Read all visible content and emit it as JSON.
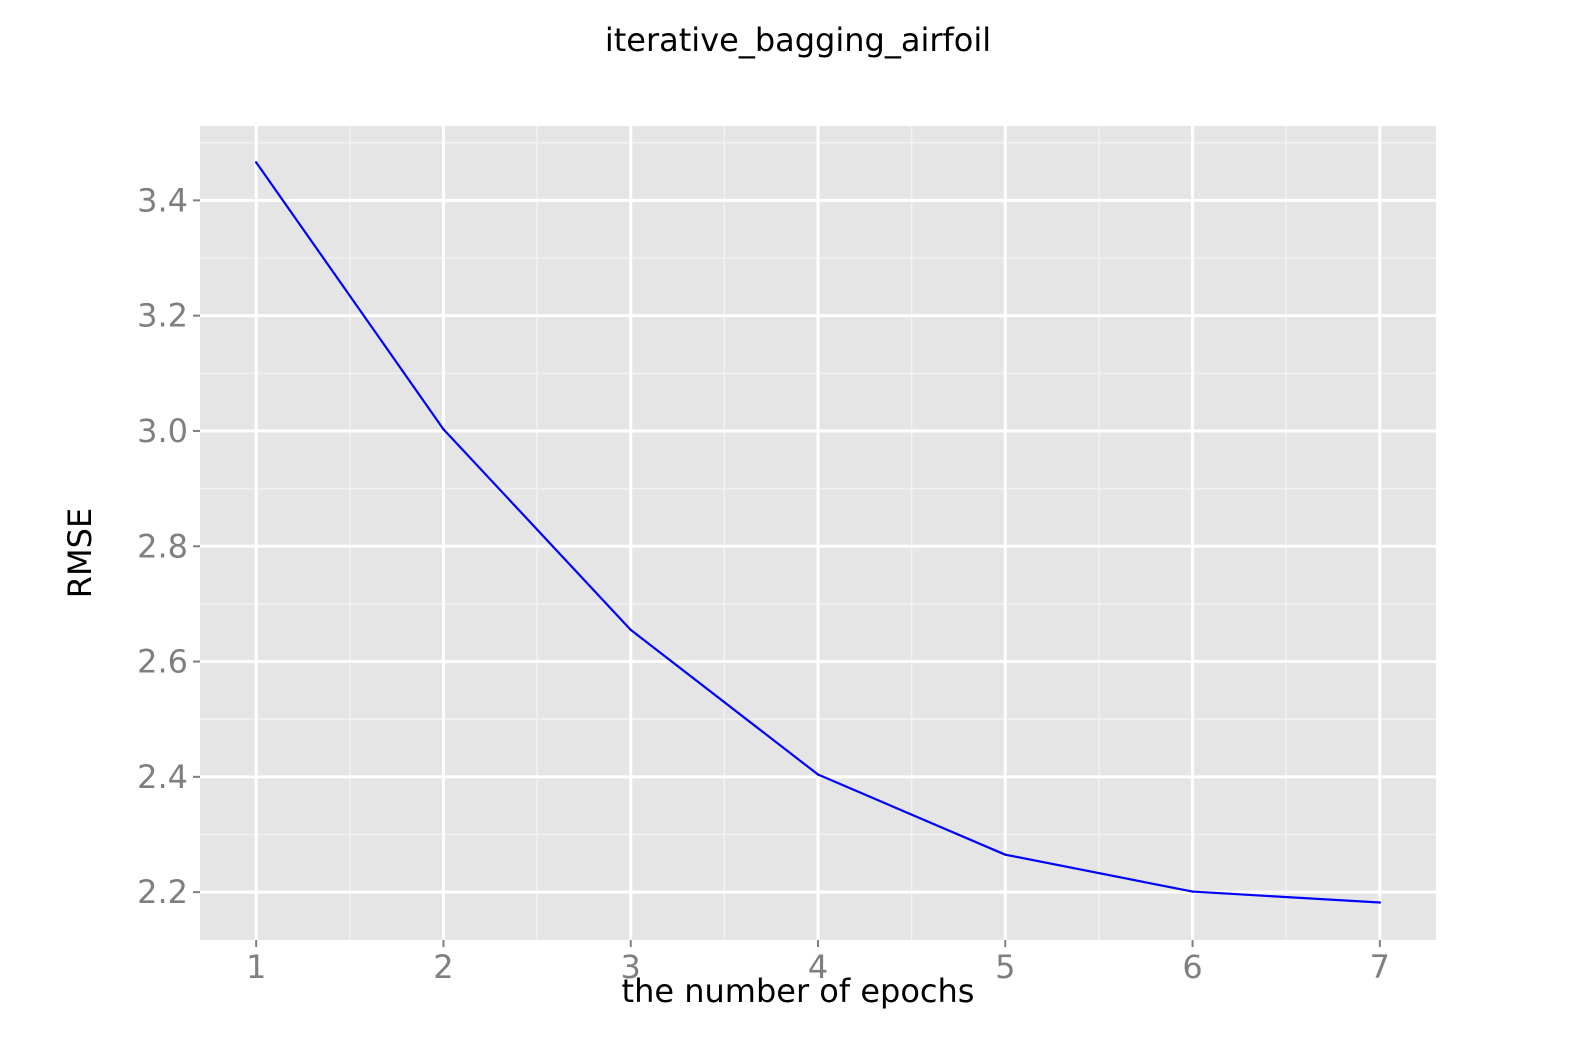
{
  "chart_data": {
    "type": "line",
    "title": "iterative_bagging_airfoil",
    "xlabel": "the number of epochs",
    "ylabel": "RMSE",
    "x": [
      1,
      2,
      3,
      4,
      5,
      6,
      7
    ],
    "series": [
      {
        "values": [
          3.466,
          3.003,
          2.655,
          2.404,
          2.265,
          2.201,
          2.182
        ]
      }
    ],
    "xlim": [
      0.7,
      7.3
    ],
    "ylim": [
      2.117,
      3.529
    ],
    "xticks": [
      1,
      2,
      3,
      4,
      5,
      6,
      7
    ],
    "xtick_labels": [
      "1",
      "2",
      "3",
      "4",
      "5",
      "6",
      "7"
    ],
    "yticks": [
      2.2,
      2.4,
      2.6,
      2.8,
      3.0,
      3.2,
      3.4
    ],
    "ytick_labels": [
      "2.2",
      "2.4",
      "2.6",
      "2.8",
      "3.0",
      "3.2",
      "3.4"
    ],
    "grid": true,
    "colors": {
      "panel_background": "#e5e5e5",
      "grid_major": "#ffffff",
      "grid_minor": "#f2f2f2",
      "line": "#0000ff",
      "tick_text": "#7f7f7f",
      "tick_mark": "#7f7f7f"
    }
  }
}
